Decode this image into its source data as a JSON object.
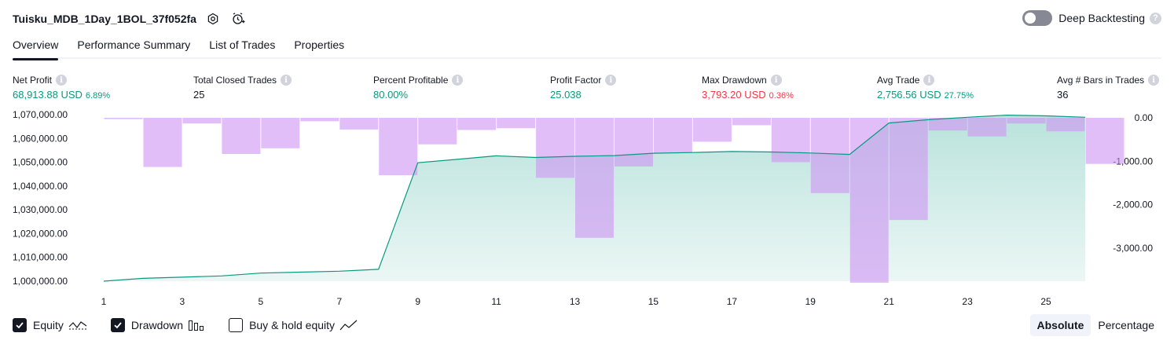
{
  "header": {
    "title": "Tuisku_MDB_1Day_1BOL_37f052fa",
    "deep_backtesting": "Deep Backtesting"
  },
  "tabs": [
    {
      "label": "Overview",
      "active": true
    },
    {
      "label": "Performance Summary"
    },
    {
      "label": "List of Trades"
    },
    {
      "label": "Properties"
    }
  ],
  "metrics": [
    {
      "label": "Net Profit",
      "value": "68,913.88 USD",
      "pct": "6.89%",
      "color": "#089981"
    },
    {
      "label": "Total Closed Trades",
      "value": "25",
      "pct": "",
      "color": "#131722"
    },
    {
      "label": "Percent Profitable",
      "value": "80.00%",
      "pct": "",
      "color": "#089981"
    },
    {
      "label": "Profit Factor",
      "value": "25.038",
      "pct": "",
      "color": "#089981"
    },
    {
      "label": "Max Drawdown",
      "value": "3,793.20 USD",
      "pct": "0.36%",
      "color": "#f23645"
    },
    {
      "label": "Avg Trade",
      "value": "2,756.56 USD",
      "pct": "27.75%",
      "color": "#089981"
    },
    {
      "label": "Avg # Bars in Trades",
      "value": "36",
      "pct": "",
      "color": "#131722"
    }
  ],
  "chart_data": {
    "type": "area",
    "x": [
      1,
      2,
      3,
      4,
      5,
      6,
      7,
      8,
      9,
      10,
      11,
      12,
      13,
      14,
      15,
      16,
      17,
      18,
      19,
      20,
      21,
      22,
      23,
      24,
      25,
      26
    ],
    "x_tick_labels": [
      "1",
      "3",
      "5",
      "7",
      "9",
      "11",
      "13",
      "15",
      "17",
      "19",
      "21",
      "23",
      "25"
    ],
    "left_axis": {
      "ticks": [
        "1,070,000.00",
        "1,060,000.00",
        "1,050,000.00",
        "1,040,000.00",
        "1,030,000.00",
        "1,020,000.00",
        "1,010,000.00",
        "1,000,000.00"
      ],
      "range": [
        1000000,
        1070000
      ]
    },
    "right_axis": {
      "ticks": [
        "0.00",
        "-1,000.00",
        "-2,000.00",
        "-3,000.00"
      ],
      "range": [
        -3793.2,
        0
      ]
    },
    "series": [
      {
        "name": "Equity",
        "kind": "area",
        "axis": "left",
        "values": [
          1000000,
          1001200,
          1001700,
          1002200,
          1003400,
          1003800,
          1004200,
          1005000,
          1049800,
          1051200,
          1052700,
          1052000,
          1052500,
          1052800,
          1053800,
          1054100,
          1054500,
          1054300,
          1053900,
          1053300,
          1066500,
          1067900,
          1068900,
          1069800,
          1069500,
          1068900
        ],
        "color": "#089981"
      },
      {
        "name": "Drawdown",
        "kind": "bar",
        "axis": "right",
        "values": [
          -30,
          -1130,
          -130,
          -830,
          -700,
          -80,
          -270,
          -1320,
          -610,
          -280,
          -240,
          -1380,
          -2760,
          -1120,
          -810,
          -550,
          -170,
          -1020,
          -1730,
          -3793.2,
          -2350,
          -290,
          -430,
          -130,
          -310,
          -1060
        ],
        "color": "#cf93f3"
      }
    ]
  },
  "legend": [
    {
      "label": "Equity",
      "checked": true
    },
    {
      "label": "Drawdown",
      "checked": true
    },
    {
      "label": "Buy & hold equity",
      "checked": false
    }
  ],
  "modes": [
    {
      "label": "Absolute",
      "active": true
    },
    {
      "label": "Percentage",
      "active": false
    }
  ]
}
